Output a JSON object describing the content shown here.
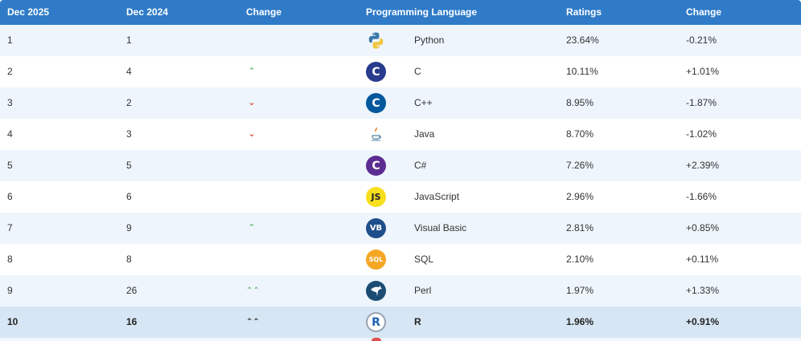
{
  "header": {
    "col1": "Dec 2025",
    "col2": "Dec 2024",
    "col3": "Change",
    "col4": "Programming Language",
    "col5": "Ratings",
    "col6": "Change"
  },
  "rows": [
    {
      "rank": "1",
      "prev": "1",
      "change": "",
      "icon": "python-icon",
      "language": "Python",
      "rating": "23.64%",
      "delta": "-0.21%"
    },
    {
      "rank": "2",
      "prev": "4",
      "change": "up",
      "icon": "c-icon",
      "language": "C",
      "rating": "10.11%",
      "delta": "+1.01%"
    },
    {
      "rank": "3",
      "prev": "2",
      "change": "down",
      "icon": "cpp-icon",
      "language": "C++",
      "rating": "8.95%",
      "delta": "-1.87%"
    },
    {
      "rank": "4",
      "prev": "3",
      "change": "down",
      "icon": "java-icon",
      "language": "Java",
      "rating": "8.70%",
      "delta": "-1.02%"
    },
    {
      "rank": "5",
      "prev": "5",
      "change": "",
      "icon": "csharp-icon",
      "language": "C#",
      "rating": "7.26%",
      "delta": "+2.39%"
    },
    {
      "rank": "6",
      "prev": "6",
      "change": "",
      "icon": "javascript-icon",
      "language": "JavaScript",
      "rating": "2.96%",
      "delta": "-1.66%"
    },
    {
      "rank": "7",
      "prev": "9",
      "change": "up",
      "icon": "visual-basic-icon",
      "language": "Visual Basic",
      "rating": "2.81%",
      "delta": "+0.85%"
    },
    {
      "rank": "8",
      "prev": "8",
      "change": "",
      "icon": "sql-icon",
      "language": "SQL",
      "rating": "2.10%",
      "delta": "+0.11%"
    },
    {
      "rank": "9",
      "prev": "26",
      "change": "double-up",
      "icon": "perl-icon",
      "language": "Perl",
      "rating": "1.97%",
      "delta": "+1.33%"
    },
    {
      "rank": "10",
      "prev": "16",
      "change": "double-up",
      "icon": "r-icon",
      "language": "R",
      "rating": "1.96%",
      "delta": "+0.91%"
    }
  ],
  "icons": {
    "python": "python-icon",
    "c": "C",
    "cpp": "C",
    "java": "java-icon",
    "csharp": "C",
    "javascript": "JS",
    "visual_basic": "VB",
    "sql": "SQL",
    "perl": "perl-icon",
    "r": "R"
  },
  "colors": {
    "header_bg": "#2f7bc8",
    "row_alt": "#eef5fc",
    "row_highlight": "#d7e6f4",
    "arrow_up": "#6ab873",
    "arrow_down": "#d64a2f"
  }
}
